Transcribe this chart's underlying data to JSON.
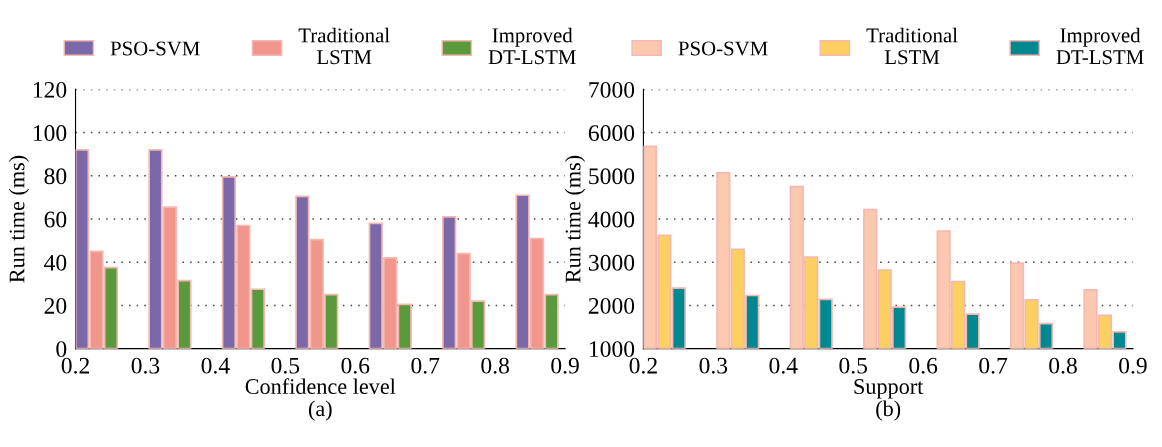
{
  "chart_data": [
    {
      "type": "bar",
      "xlabel": "Confidence level",
      "ylabel": "Run time (ms)",
      "annotations": [
        "(a)"
      ],
      "x": [
        0.23,
        0.335,
        0.44,
        0.545,
        0.65,
        0.755,
        0.86
      ],
      "xlim": [
        0.2,
        0.9
      ],
      "xticks": [
        0.2,
        0.3,
        0.4,
        0.5,
        0.6,
        0.7,
        0.8,
        0.9
      ],
      "ylim": [
        0,
        120
      ],
      "yticks": [
        0,
        20,
        40,
        60,
        80,
        100,
        120
      ],
      "grid": "y",
      "legend": "top",
      "series": [
        {
          "name": "PSO-SVM",
          "color": "#7b68a8",
          "values": [
            92,
            92,
            79.5,
            70.5,
            58,
            61,
            71
          ]
        },
        {
          "name": "Traditional\nLSTM",
          "color": "#f0968c",
          "values": [
            45,
            65.5,
            57,
            50.5,
            42,
            44,
            51
          ]
        },
        {
          "name": "Improved\nDT-LSTM",
          "color": "#5a9a3c",
          "values": [
            37.5,
            31.5,
            27.5,
            25,
            20.5,
            22,
            25
          ]
        }
      ]
    },
    {
      "type": "bar",
      "xlabel": "Support",
      "ylabel": "Run time (ms)",
      "annotations": [
        "(b)"
      ],
      "x": [
        0.23,
        0.335,
        0.44,
        0.545,
        0.65,
        0.755,
        0.86
      ],
      "xlim": [
        0.2,
        0.9
      ],
      "xticks": [
        0.2,
        0.3,
        0.4,
        0.5,
        0.6,
        0.7,
        0.8,
        0.9
      ],
      "ylim": [
        1000,
        7000
      ],
      "yticks": [
        1000,
        2000,
        3000,
        4000,
        5000,
        6000,
        7000
      ],
      "grid": "y",
      "legend": "top",
      "series": [
        {
          "name": "PSO-SVM",
          "color": "#fcc8b0",
          "values": [
            5680,
            5070,
            4750,
            4220,
            3720,
            2980,
            2360
          ]
        },
        {
          "name": "Traditional\nLSTM",
          "color": "#fcd060",
          "values": [
            3620,
            3300,
            3120,
            2820,
            2550,
            2130,
            1770
          ]
        },
        {
          "name": "Improved\nDT-LSTM",
          "color": "#008890",
          "values": [
            2400,
            2230,
            2140,
            1960,
            1800,
            1580,
            1390
          ]
        }
      ]
    }
  ]
}
